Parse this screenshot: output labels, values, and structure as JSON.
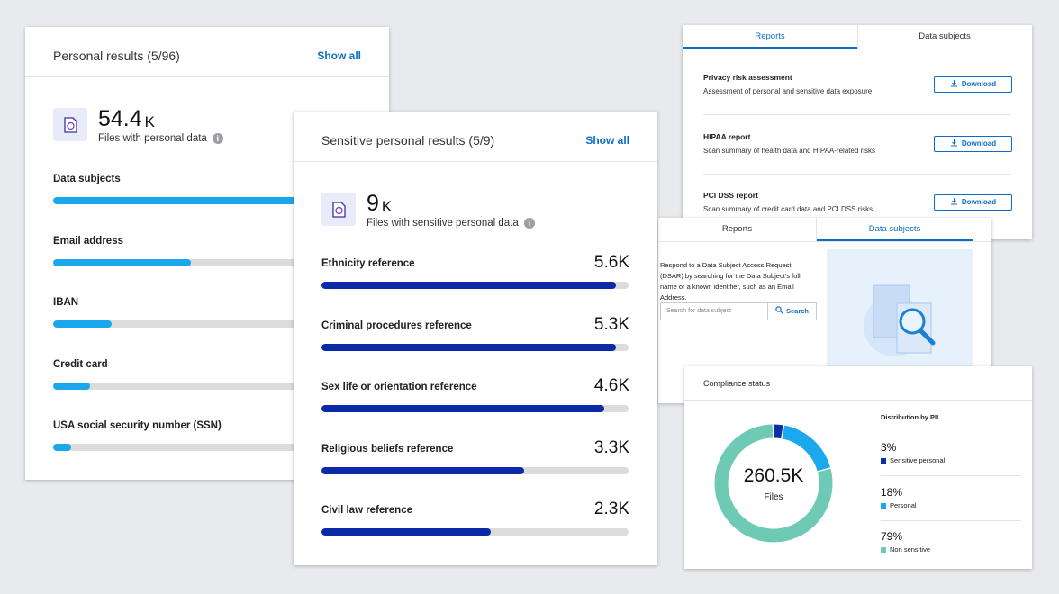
{
  "personal": {
    "title": "Personal results (5/96)",
    "action": "Show all",
    "count": "54.4",
    "unit": "K",
    "caption": "Files with personal data",
    "items": [
      {
        "label": "Data subjects",
        "fill": 90
      },
      {
        "label": "Email address",
        "fill": 45
      },
      {
        "label": "IBAN",
        "fill": 19
      },
      {
        "label": "Credit card",
        "fill": 12
      },
      {
        "label": "USA social security number (SSN)",
        "fill": 6
      }
    ]
  },
  "sensitive": {
    "title": "Sensitive personal results (5/9)",
    "action": "Show all",
    "count": "9",
    "unit": "K",
    "caption": "Files with sensitive personal data",
    "items": [
      {
        "label": "Ethnicity reference",
        "value": "5.6K",
        "fill": 96
      },
      {
        "label": "Criminal procedures reference",
        "value": "5.3K",
        "fill": 96
      },
      {
        "label": "Sex life or orientation reference",
        "value": "4.6K",
        "fill": 92
      },
      {
        "label": "Religious beliefs reference",
        "value": "3.3K",
        "fill": 66
      },
      {
        "label": "Civil law reference",
        "value": "2.3K",
        "fill": 55
      }
    ]
  },
  "reports": {
    "tabs": [
      "Reports",
      "Data subjects"
    ],
    "rows": [
      {
        "title": "Privacy risk assessment",
        "description": "Assessment of personal and sensitive data exposure",
        "button": "Download"
      },
      {
        "title": "HIPAA report",
        "description": "Scan summary of health data and HIPAA-related risks",
        "button": "Download"
      },
      {
        "title": "PCI DSS report",
        "description": "Scan summary of credit card data and PCI DSS risks",
        "button": "Download"
      }
    ]
  },
  "data_subjects": {
    "tabs": [
      "Reports",
      "Data subjects"
    ],
    "text": "Respond to a Data Subject Access Request (DSAR) by searching for the Data Subject's full name or a known identifier, such as an Email Address.",
    "placeholder": "Search for data subject",
    "button": "Search"
  },
  "compliance": {
    "title": "Compliance status",
    "total": "260.5K",
    "total_caption": "Files",
    "legend_title": "Distribution by PII",
    "items": [
      {
        "value": 3,
        "value_label": "3%",
        "label": "Sensitive personal",
        "color": "#0b2fa5"
      },
      {
        "value": 18,
        "value_label": "18%",
        "label": "Personal",
        "color": "#1ba8ec"
      },
      {
        "value": 79,
        "value_label": "79%",
        "label": "Non sensitive",
        "color": "#6fcab5"
      }
    ]
  }
}
